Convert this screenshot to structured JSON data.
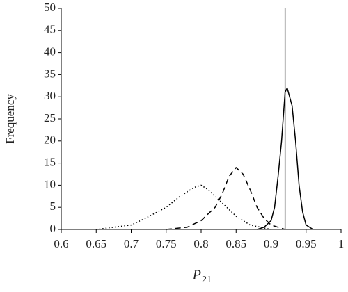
{
  "chart_data": {
    "type": "line",
    "y_label": "Frequency",
    "x_label": "P",
    "x_label_subscript": "21",
    "xlim": [
      0.6,
      1
    ],
    "xticks": [
      0.6,
      0.65,
      0.7,
      0.75,
      0.8,
      0.85,
      0.9,
      0.95,
      1
    ],
    "ylim": [
      0,
      50
    ],
    "yticks": [
      0,
      5,
      10,
      15,
      20,
      25,
      30,
      35,
      40,
      45,
      50
    ],
    "vline": 0.92,
    "series": [
      {
        "color": "#000000",
        "dash": "solid",
        "x": [
          0.88,
          0.89,
          0.9,
          0.905,
          0.91,
          0.915,
          0.92,
          0.923,
          0.93,
          0.935,
          0.94,
          0.945,
          0.95,
          0.96
        ],
        "values": [
          0,
          0.5,
          2,
          5,
          12,
          20,
          31,
          32,
          28,
          20,
          10,
          4,
          1,
          0
        ]
      },
      {
        "color": "#000000",
        "dash": "dashed",
        "x": [
          0.75,
          0.78,
          0.8,
          0.82,
          0.83,
          0.84,
          0.85,
          0.86,
          0.87,
          0.88,
          0.89,
          0.9,
          0.92
        ],
        "values": [
          0,
          0.5,
          2,
          5,
          8,
          12,
          14,
          12.5,
          9,
          5,
          2.5,
          1,
          0
        ]
      },
      {
        "color": "#000000",
        "dash": "dotted",
        "x": [
          0.65,
          0.7,
          0.72,
          0.75,
          0.77,
          0.79,
          0.8,
          0.81,
          0.83,
          0.85,
          0.87,
          0.9
        ],
        "values": [
          0,
          1,
          2.5,
          5,
          7.5,
          9.5,
          10,
          9,
          6,
          3,
          1,
          0
        ]
      }
    ]
  }
}
